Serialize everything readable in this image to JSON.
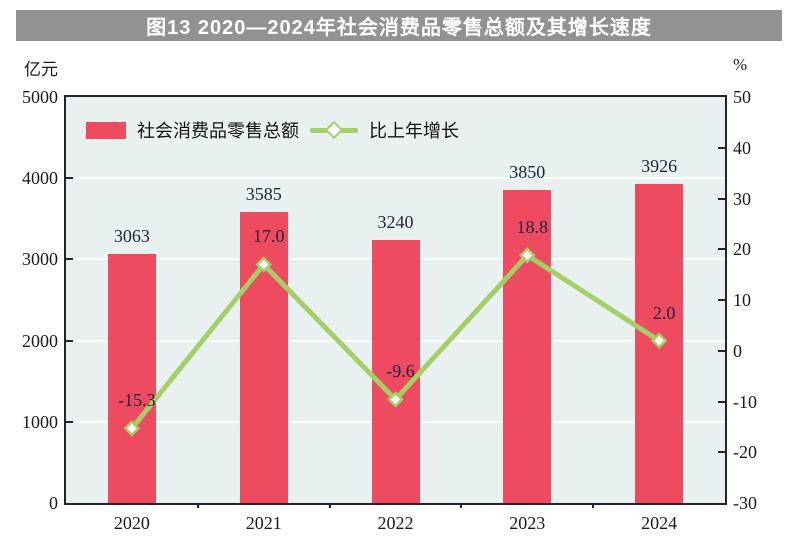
{
  "title": "图13 2020—2024年社会消费品零售总额及其增长速度",
  "chart_data": {
    "type": "combo-bar-line",
    "categories": [
      "2020",
      "2021",
      "2022",
      "2023",
      "2024"
    ],
    "series": [
      {
        "name": "社会消费品零售总额",
        "type": "bar",
        "axis": "left",
        "values": [
          3063,
          3585,
          3240,
          3850,
          3926
        ],
        "value_labels": [
          "3063",
          "3585",
          "3240",
          "3850",
          "3926"
        ]
      },
      {
        "name": "比上年增长",
        "type": "line",
        "axis": "right",
        "values": [
          -15.3,
          17,
          -9.6,
          18.8,
          2
        ],
        "value_labels": [
          "-15.3",
          "17.0",
          "-9.6",
          "18.8",
          "2.0"
        ]
      }
    ],
    "left_axis": {
      "unit": "亿元",
      "min": 0,
      "max": 5000,
      "step": 1000
    },
    "right_axis": {
      "unit": "%",
      "min": -30,
      "max": 50,
      "step": 10
    },
    "grid": "horizontal",
    "legend_position": "top-left-inside"
  },
  "colors": {
    "banner_bg": "#929292",
    "banner_text": "#ffffff",
    "bar": "#ee4a60",
    "line": "#a3cf66",
    "marker_fill": "#ffffff",
    "plot_bg": "#e8f1ef",
    "plot_border": "#23232d",
    "gridline": "#ffffff",
    "label_text": "#1c2438"
  }
}
